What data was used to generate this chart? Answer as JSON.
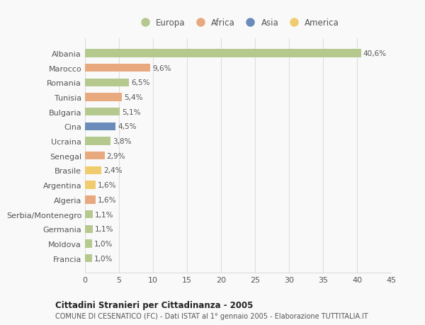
{
  "countries": [
    "Albania",
    "Marocco",
    "Romania",
    "Tunisia",
    "Bulgaria",
    "Cina",
    "Ucraina",
    "Senegal",
    "Brasile",
    "Argentina",
    "Algeria",
    "Serbia/Montenegro",
    "Germania",
    "Moldova",
    "Francia"
  ],
  "values": [
    40.6,
    9.6,
    6.5,
    5.4,
    5.1,
    4.5,
    3.8,
    2.9,
    2.4,
    1.6,
    1.6,
    1.1,
    1.1,
    1.0,
    1.0
  ],
  "labels": [
    "40,6%",
    "9,6%",
    "6,5%",
    "5,4%",
    "5,1%",
    "4,5%",
    "3,8%",
    "2,9%",
    "2,4%",
    "1,6%",
    "1,6%",
    "1,1%",
    "1,1%",
    "1,0%",
    "1,0%"
  ],
  "colors": [
    "#b5c98e",
    "#e8a97e",
    "#b5c98e",
    "#e8a97e",
    "#b5c98e",
    "#6b8cba",
    "#b5c98e",
    "#e8a97e",
    "#f0cc6e",
    "#f0cc6e",
    "#e8a97e",
    "#b5c98e",
    "#b5c98e",
    "#b5c98e",
    "#b5c98e"
  ],
  "legend_labels": [
    "Europa",
    "Africa",
    "Asia",
    "America"
  ],
  "legend_colors": [
    "#b5c98e",
    "#e8a97e",
    "#6b8cba",
    "#f0cc6e"
  ],
  "xlim": [
    0,
    45
  ],
  "xticks": [
    0,
    5,
    10,
    15,
    20,
    25,
    30,
    35,
    40,
    45
  ],
  "title": "Cittadini Stranieri per Cittadinanza - 2005",
  "subtitle": "COMUNE DI CESENATICO (FC) - Dati ISTAT al 1° gennaio 2005 - Elaborazione TUTTITALIA.IT",
  "bg_color": "#f9f9f9",
  "bar_height": 0.55,
  "grid_color": "#dddddd",
  "text_color": "#555555"
}
